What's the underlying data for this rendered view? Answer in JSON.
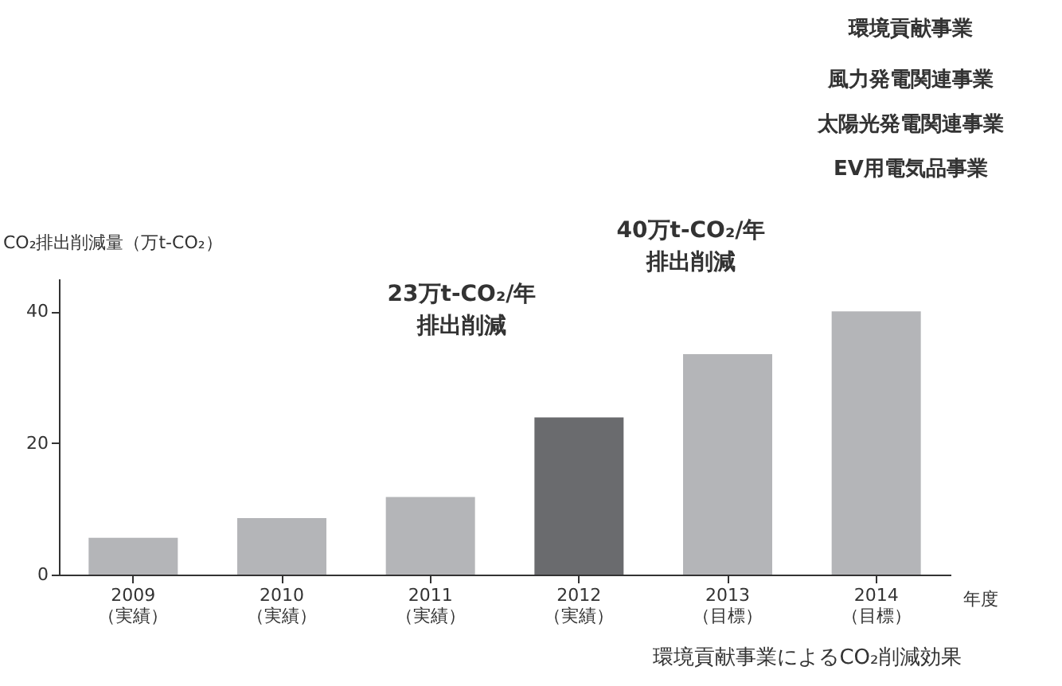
{
  "chart_data": {
    "type": "bar",
    "ylabel": "CO₂排出削減量（万t-CO₂）",
    "xlabel": "年度",
    "categories": [
      "2009\n（実績）",
      "2010\n（実績）",
      "2011\n（実績）",
      "2012\n（実績）",
      "2013\n（目標）",
      "2014\n（目標）"
    ],
    "values": [
      5.6,
      8.6,
      11.8,
      23.9,
      33.5,
      40.0
    ],
    "colors": [
      "#b4b5b8",
      "#b4b5b8",
      "#b4b5b8",
      "#6a6b6e",
      "#b4b5b8",
      "#b4b5b8"
    ],
    "ylim": [
      0,
      45
    ],
    "yticks": [
      0,
      20,
      40
    ],
    "grid": false,
    "annotations": [
      "23万t-CO₂/年",
      "排出削減",
      "40万t-CO₂/年",
      "排出削減",
      "環境貢献事業",
      "風力発電関連事業",
      "太陽光発電関連事業",
      "EV用電気品事業",
      "環境貢献事業によるCO₂削減効果"
    ]
  }
}
